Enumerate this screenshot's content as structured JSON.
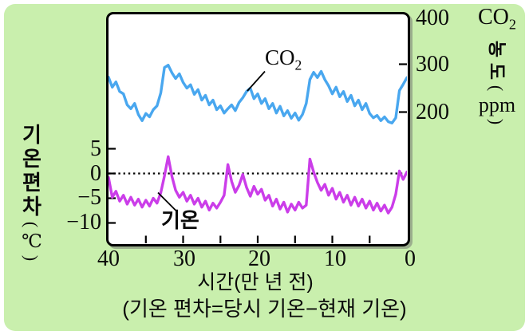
{
  "figure": {
    "background_color": "#c9efad",
    "caption": "(기온 편차=당시 기온−현재 기온)"
  },
  "left_axis_title": {
    "chars": [
      "기",
      "온",
      "편",
      "차"
    ],
    "open": "(",
    "unit": "℃",
    "close": ")"
  },
  "right_axis_title": {
    "gas": "CO",
    "sub": "2",
    "chars": [
      "농",
      "도"
    ],
    "open": "(",
    "unit": "ppm",
    "close": ")"
  },
  "chart_data": {
    "type": "line",
    "title": "",
    "xlabel": "시간(만 년 전)",
    "x_axis": {
      "label": "시간(만 년 전)",
      "range": [
        40,
        0
      ],
      "direction": "reversed",
      "ticks": [
        40,
        30,
        20,
        10,
        0
      ],
      "tick_labels": [
        "40",
        "30",
        "20",
        "10",
        "0"
      ],
      "minor_tick_marks": [
        35,
        30,
        25,
        20,
        15,
        10,
        5
      ]
    },
    "left_axis": {
      "label": "기온 편차(℃)",
      "range": [
        -12,
        6.6
      ],
      "ticks": [
        5,
        0,
        -5,
        -10
      ],
      "tick_labels": [
        "5",
        "0",
        "−5",
        "−10"
      ]
    },
    "right_axis": {
      "label": "CO₂ 농도(ppm)",
      "range": [
        164,
        404
      ],
      "ticks": [
        400,
        300,
        200
      ],
      "tick_labels": [
        "400",
        "300",
        "200"
      ]
    },
    "reference_line": {
      "axis": "left",
      "value": 0,
      "style": "dotted"
    },
    "grid": false,
    "annotations": [
      {
        "text": "CO",
        "subscript": "2",
        "series": "CO₂"
      },
      {
        "text": "기온",
        "series": "기온"
      }
    ],
    "x": [
      40,
      39.5,
      39,
      38.5,
      38,
      37.5,
      37,
      36.5,
      36,
      35.5,
      35,
      34.5,
      34,
      33.5,
      33,
      32.5,
      32,
      31.5,
      31,
      30.5,
      30,
      29.5,
      29,
      28.5,
      28,
      27.5,
      27,
      26.5,
      26,
      25.5,
      25,
      24.5,
      24,
      23.5,
      23,
      22.5,
      22,
      21.5,
      21,
      20.5,
      20,
      19.5,
      19,
      18.5,
      18,
      17.5,
      17,
      16.5,
      16,
      15.5,
      15,
      14.5,
      14,
      13.5,
      13,
      12.5,
      12,
      11.5,
      11,
      10.5,
      10,
      9.5,
      9,
      8.5,
      8,
      7.5,
      7,
      6.5,
      6,
      5.5,
      5,
      4.5,
      4,
      3.5,
      3,
      2.5,
      2,
      1.5,
      1,
      0.5,
      0
    ],
    "series": [
      {
        "name": "CO₂",
        "unit": "ppm",
        "axis": "right",
        "color": "#49a7ef",
        "values": [
          273,
          252,
          263,
          243,
          238,
          215,
          207,
          218,
          195,
          182,
          197,
          190,
          205,
          213,
          240,
          293,
          298,
          282,
          270,
          280,
          262,
          250,
          257,
          237,
          247,
          225,
          235,
          215,
          225,
          205,
          213,
          198,
          207,
          215,
          203,
          220,
          230,
          243,
          250,
          228,
          238,
          218,
          228,
          207,
          218,
          198,
          212,
          192,
          203,
          187,
          198,
          183,
          195,
          218,
          268,
          283,
          272,
          285,
          268,
          255,
          238,
          252,
          232,
          243,
          222,
          235,
          213,
          225,
          205,
          218,
          197,
          188,
          193,
          182,
          190,
          180,
          177,
          188,
          245,
          258,
          272
        ]
      },
      {
        "name": "기온",
        "unit": "℃",
        "axis": "left",
        "color": "#cb3de9",
        "values": [
          -0.8,
          -4.8,
          -3.6,
          -5.6,
          -4.4,
          -6.2,
          -4.8,
          -6.4,
          -5.2,
          -6.8,
          -5.4,
          -6.6,
          -5.0,
          -6.0,
          -3.9,
          -0.5,
          3.4,
          -0.6,
          -3.4,
          -4.8,
          -3.8,
          -5.6,
          -4.4,
          -6.2,
          -5.0,
          -6.8,
          -5.6,
          -7.4,
          -6.0,
          -7.0,
          -5.8,
          -4.4,
          1.8,
          -1.6,
          -3.8,
          -2.4,
          -0.2,
          -2.8,
          -4.6,
          -2.6,
          -4.2,
          -3.2,
          -5.4,
          -4.4,
          -6.6,
          -5.2,
          -7.2,
          -5.8,
          -7.8,
          -6.2,
          -7.4,
          -5.8,
          -7.0,
          -6.4,
          2.9,
          0.3,
          -1.8,
          -3.4,
          -2.2,
          -4.4,
          -3.0,
          -5.2,
          -3.8,
          -5.8,
          -4.4,
          -6.4,
          -4.8,
          -6.6,
          -5.2,
          -7.0,
          -5.6,
          -7.4,
          -6.0,
          -7.6,
          -6.4,
          -8.0,
          -6.8,
          -4.2,
          0.5,
          -1.2,
          0.3
        ]
      }
    ]
  }
}
